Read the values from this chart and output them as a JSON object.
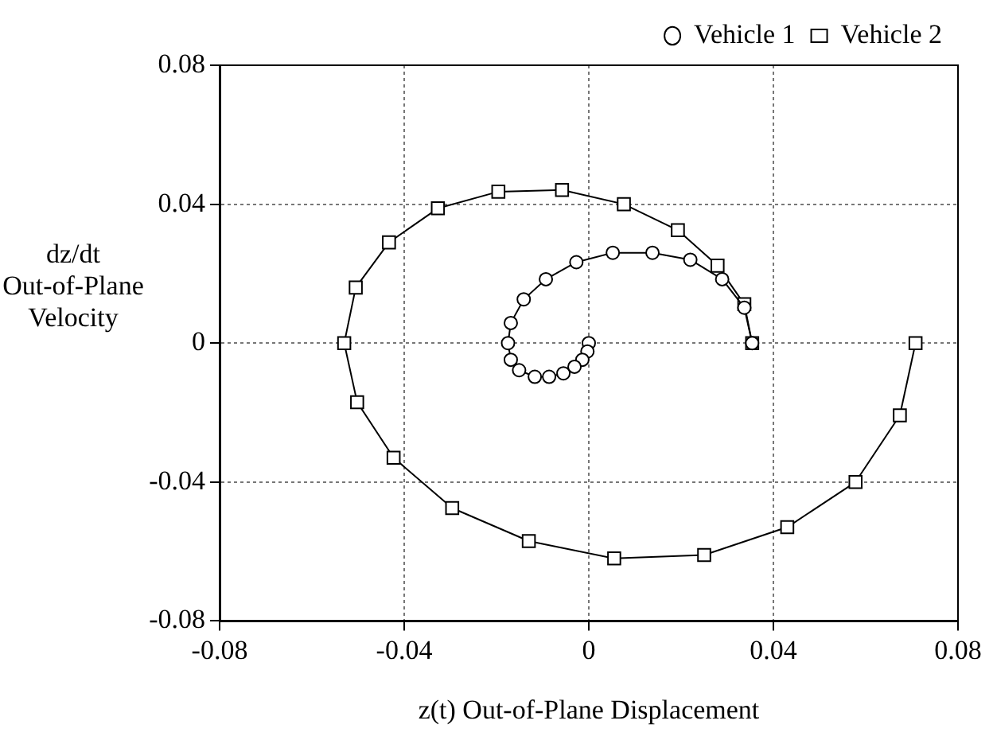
{
  "chart_data": {
    "type": "line",
    "xlabel": "z(t) Out-of-Plane Displacement",
    "ylabel": "dz/dt\nOut-of-Plane\nVelocity",
    "xlim": [
      -0.08,
      0.08
    ],
    "xticks": [
      -0.08,
      -0.04,
      0,
      0.04,
      0.08
    ],
    "ylim": [
      -0.08,
      0.08
    ],
    "yticks": [
      -0.08,
      -0.04,
      0,
      0.04,
      0.08
    ],
    "grid": true,
    "legend": "top right",
    "line_style": "solid",
    "series": [
      {
        "name": "Vehicle 1",
        "color": "#000000",
        "marker": "circle",
        "x": [
          0,
          -0.0003,
          -0.0014,
          -0.0031,
          -0.0055,
          -0.0086,
          -0.0117,
          -0.0151,
          -0.0169,
          -0.0175,
          -0.0169,
          -0.0141,
          -0.0093,
          -0.0027,
          0.0052,
          0.0138,
          0.022,
          0.0289,
          0.0337,
          0.0354
        ],
        "values": [
          0,
          -0.0024,
          -0.0048,
          -0.0068,
          -0.0087,
          -0.0097,
          -0.0097,
          -0.0078,
          -0.0048,
          0,
          0.0058,
          0.0126,
          0.0184,
          0.0233,
          0.026,
          0.026,
          0.024,
          0.0184,
          0.0102,
          0
        ]
      },
      {
        "name": "Vehicle 2",
        "color": "#000000",
        "marker": "square",
        "x": [
          0.0708,
          0.0674,
          0.0578,
          0.043,
          0.025,
          0.0055,
          -0.013,
          -0.0296,
          -0.0423,
          -0.0502,
          -0.053,
          -0.0505,
          -0.0433,
          -0.0327,
          -0.0196,
          -0.0058,
          0.0076,
          0.0193,
          0.0279,
          0.0337,
          0.0354
        ],
        "values": [
          0,
          -0.0208,
          -0.04,
          -0.053,
          -0.061,
          -0.062,
          -0.057,
          -0.0475,
          -0.033,
          -0.017,
          0,
          0.016,
          0.029,
          0.0388,
          0.0436,
          0.0441,
          0.04,
          0.0325,
          0.0223,
          0.0112,
          0
        ]
      }
    ]
  }
}
